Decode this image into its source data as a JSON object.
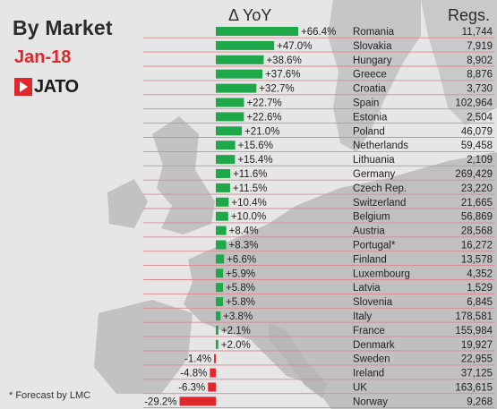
{
  "header": {
    "title": "By Market",
    "subtitle": "Jan-18",
    "logo_text": "JATO",
    "col_yoy": "Δ YoY",
    "col_regs": "Regs."
  },
  "footnote": "* Forecast by LMC",
  "colors": {
    "positive": "#1fa84a",
    "negative": "#e0282c",
    "rule": "#d98a8a",
    "text": "#222222",
    "background": "#e6e6e6",
    "land": "#c4c4c4"
  },
  "chart_data": {
    "type": "bar",
    "orientation": "horizontal",
    "title": "By Market",
    "subtitle": "Jan-18",
    "value_axis_label": "Δ YoY",
    "categories": [
      "Romania",
      "Slovakia",
      "Hungary",
      "Greece",
      "Croatia",
      "Spain",
      "Estonia",
      "Poland",
      "Netherlands",
      "Lithuania",
      "Germany",
      "Czech Rep.",
      "Switzerland",
      "Belgium",
      "Austria",
      "Portugal*",
      "Finland",
      "Luxembourg",
      "Latvia",
      "Slovenia",
      "Italy",
      "France",
      "Denmark",
      "Sweden",
      "Ireland",
      "UK",
      "Norway"
    ],
    "series": [
      {
        "name": "Δ YoY",
        "values": [
          66.4,
          47.0,
          38.6,
          37.6,
          32.7,
          22.7,
          22.6,
          21.0,
          15.6,
          15.4,
          11.6,
          11.5,
          10.4,
          10.0,
          8.4,
          8.3,
          6.6,
          5.9,
          5.8,
          5.8,
          3.8,
          2.1,
          2.0,
          -1.4,
          -4.8,
          -6.3,
          -29.2
        ],
        "labels": [
          "+66.4%",
          "+47.0%",
          "+38.6%",
          "+37.6%",
          "+32.7%",
          "+22.7%",
          "+22.6%",
          "+21.0%",
          "+15.6%",
          "+15.4%",
          "+11.6%",
          "+11.5%",
          "+10.4%",
          "+10.0%",
          "+8.4%",
          "+8.3%",
          "+6.6%",
          "+5.9%",
          "+5.8%",
          "+5.8%",
          "+3.8%",
          "+2.1%",
          "+2.0%",
          "-1.4%",
          "-4.8%",
          "-6.3%",
          "-29.2%"
        ]
      },
      {
        "name": "Regs.",
        "values": [
          11744,
          7919,
          8902,
          8876,
          3730,
          102964,
          2504,
          46079,
          59458,
          2109,
          269429,
          23220,
          21665,
          56869,
          28568,
          16272,
          13578,
          4352,
          1529,
          6845,
          178581,
          155984,
          19927,
          22955,
          37125,
          163615,
          9268
        ],
        "labels": [
          "11,744",
          "7,919",
          "8,902",
          "8,876",
          "3,730",
          "102,964",
          "2,504",
          "46,079",
          "59,458",
          "2,109",
          "269,429",
          "23,220",
          "21,665",
          "56,869",
          "28,568",
          "16,272",
          "13,578",
          "4,352",
          "1,529",
          "6,845",
          "178,581",
          "155,984",
          "19,927",
          "22,955",
          "37,125",
          "163,615",
          "9,268"
        ]
      }
    ],
    "legend": "none",
    "grid": false
  }
}
